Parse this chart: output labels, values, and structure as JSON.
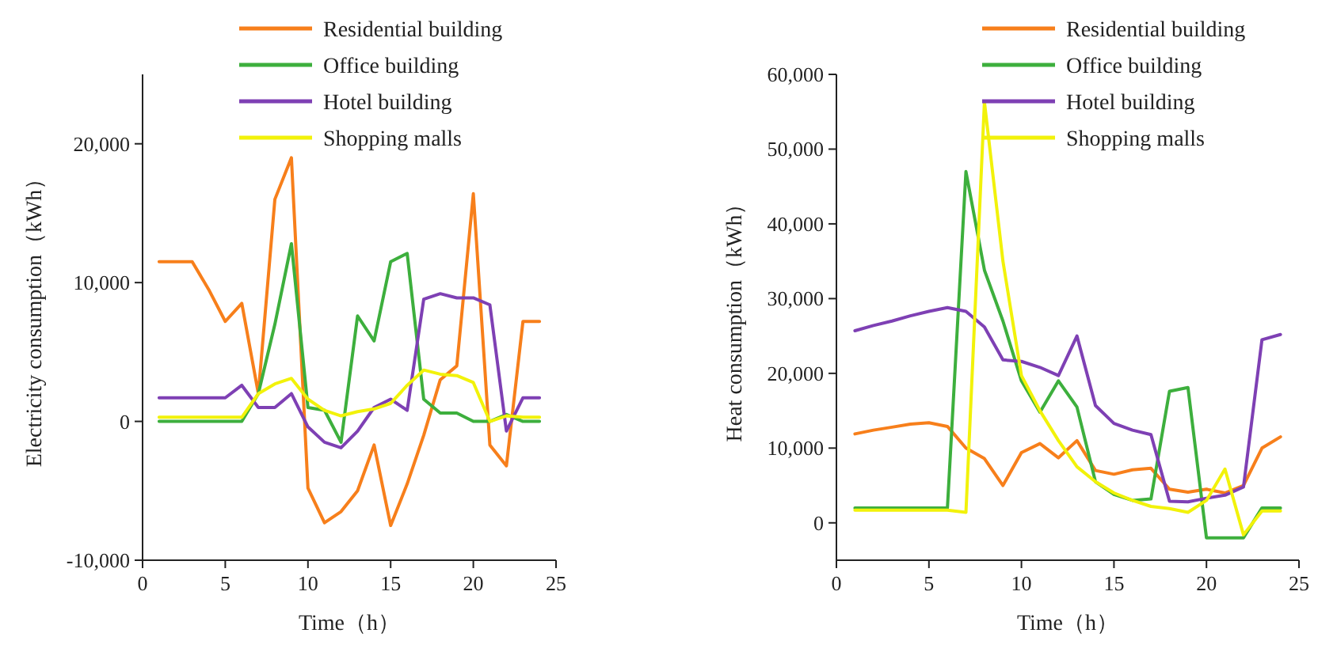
{
  "chart_data": [
    {
      "type": "line",
      "xlabel": "Time（h）",
      "ylabel": "Electricity consumption（kWh）",
      "x": [
        1,
        2,
        3,
        4,
        5,
        6,
        7,
        8,
        9,
        10,
        11,
        12,
        13,
        14,
        15,
        16,
        17,
        18,
        19,
        20,
        21,
        22,
        23,
        24
      ],
      "series": [
        {
          "name": "Residential building",
          "color": "#f77f1b",
          "values": [
            11500,
            11500,
            11500,
            9500,
            7200,
            8500,
            2000,
            16000,
            19000,
            -4800,
            -7300,
            -6500,
            -5000,
            -1700,
            -7500,
            -4500,
            -1000,
            3000,
            4000,
            16400,
            -1700,
            -3200,
            7200,
            7200
          ]
        },
        {
          "name": "Office building",
          "color": "#3daf3d",
          "values": [
            0,
            0,
            0,
            0,
            0,
            0,
            2000,
            7000,
            12800,
            1000,
            800,
            -1500,
            7600,
            5800,
            11500,
            12100,
            1600,
            600,
            600,
            0,
            0,
            500,
            0,
            0
          ]
        },
        {
          "name": "Hotel building",
          "color": "#7e40b4",
          "values": [
            1700,
            1700,
            1700,
            1700,
            1700,
            2600,
            1000,
            1000,
            2000,
            -400,
            -1500,
            -1900,
            -700,
            1000,
            1600,
            800,
            8800,
            9200,
            8900,
            8900,
            8400,
            -700,
            1700,
            1700
          ]
        },
        {
          "name": "Shopping malls",
          "color": "#f2f20a",
          "values": [
            300,
            300,
            300,
            300,
            300,
            300,
            2000,
            2700,
            3100,
            1600,
            800,
            400,
            700,
            900,
            1300,
            2600,
            3700,
            3400,
            3300,
            2800,
            0,
            400,
            300,
            300
          ]
        }
      ],
      "xlim": [
        0,
        25
      ],
      "xticks": [
        0,
        5,
        10,
        15,
        20,
        25
      ],
      "ylim": [
        -10000,
        25000
      ],
      "yticks": [
        {
          "value": -10000,
          "label": "-10,000"
        },
        {
          "value": 0,
          "label": "0"
        },
        {
          "value": 10000,
          "label": "10,000"
        },
        {
          "value": 20000,
          "label": "20,000"
        }
      ],
      "legend": "top right",
      "grid": false
    },
    {
      "type": "line",
      "xlabel": "Time（h）",
      "ylabel": "Heat consumption（kWh）",
      "x": [
        1,
        2,
        3,
        4,
        5,
        6,
        7,
        8,
        9,
        10,
        11,
        12,
        13,
        14,
        15,
        16,
        17,
        18,
        19,
        20,
        21,
        22,
        23,
        24
      ],
      "series": [
        {
          "name": "Residential building",
          "color": "#f77f1b",
          "values": [
            11900,
            12400,
            12800,
            13200,
            13400,
            12900,
            10000,
            8600,
            5000,
            9400,
            10600,
            8700,
            11000,
            7000,
            6500,
            7100,
            7300,
            4500,
            4100,
            4500,
            4000,
            5000,
            10000,
            11500
          ]
        },
        {
          "name": "Office building",
          "color": "#3daf3d",
          "values": [
            2000,
            2000,
            2000,
            2000,
            2000,
            2000,
            47000,
            33800,
            27000,
            19000,
            14800,
            19000,
            15500,
            5500,
            3800,
            3000,
            3200,
            17600,
            18100,
            -2000,
            -2000,
            -2000,
            2000,
            2000
          ]
        },
        {
          "name": "Hotel building",
          "color": "#7e40b4",
          "values": [
            25700,
            26400,
            27000,
            27700,
            28300,
            28800,
            28300,
            26200,
            21800,
            21600,
            20800,
            19700,
            25000,
            15700,
            13300,
            12400,
            11800,
            2900,
            2800,
            3300,
            3700,
            4800,
            24500,
            25200
          ]
        },
        {
          "name": "Shopping malls",
          "color": "#f2f20a",
          "values": [
            1700,
            1700,
            1700,
            1700,
            1700,
            1700,
            1400,
            56300,
            35000,
            19700,
            15000,
            11000,
            7500,
            5500,
            4000,
            3000,
            2200,
            1900,
            1400,
            3000,
            7200,
            -1600,
            1600,
            1600
          ]
        }
      ],
      "xlim": [
        0,
        25
      ],
      "xticks": [
        0,
        5,
        10,
        15,
        20,
        25
      ],
      "ylim": [
        -5000,
        60000
      ],
      "yticks": [
        {
          "value": 0,
          "label": "0"
        },
        {
          "value": 10000,
          "label": "10,000"
        },
        {
          "value": 20000,
          "label": "20,000"
        },
        {
          "value": 30000,
          "label": "30,000"
        },
        {
          "value": 40000,
          "label": "40,000"
        },
        {
          "value": 50000,
          "label": "50,000"
        },
        {
          "value": 60000,
          "label": "60,000"
        }
      ],
      "legend": "top right",
      "grid": false
    }
  ]
}
